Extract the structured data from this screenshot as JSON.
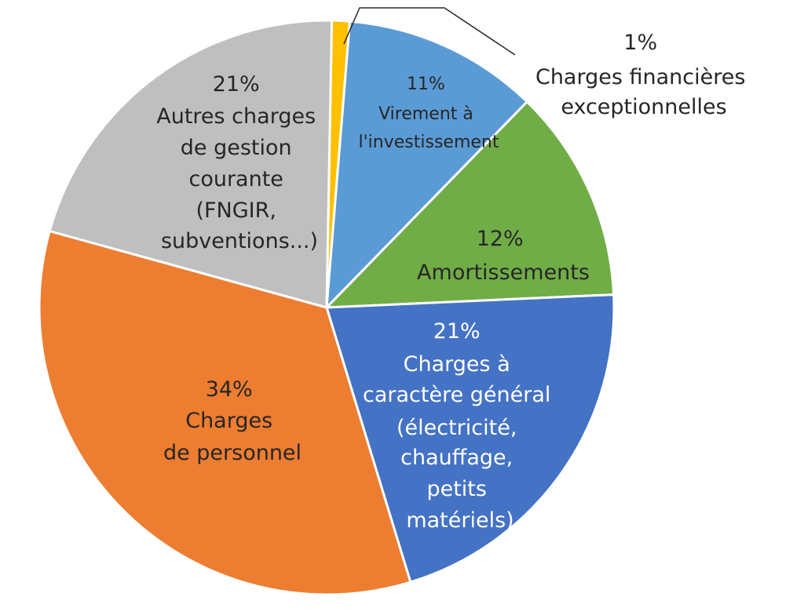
{
  "chart_data": {
    "type": "pie",
    "slices": [
      {
        "label": "Charges financières exceptionnelles",
        "value": 1,
        "color": "#FFC000",
        "label_lines": [
          "1%",
          "Charges financières",
          "exceptionnelles"
        ]
      },
      {
        "label": "Virement à l'investissement",
        "value": 11,
        "color": "#5B9BD5",
        "label_lines": [
          "11%",
          "Virement à",
          "l'investissement"
        ]
      },
      {
        "label": "Amortissements",
        "value": 12,
        "color": "#70AD47",
        "label_lines": [
          "12%",
          "Amortissements"
        ]
      },
      {
        "label": "Charges à caractère général (électricité, chauffage, petits matériels)",
        "value": 21,
        "color": "#4472C4",
        "label_lines": [
          "21%",
          "Charges à",
          "caractère général",
          "(électricité,",
          "chauffage,",
          "petits",
          "matériels)"
        ]
      },
      {
        "label": "Charges de personnel",
        "value": 34,
        "color": "#ED7D31",
        "label_lines": [
          "34%",
          "Charges",
          "de personnel"
        ]
      },
      {
        "label": "Autres charges de gestion courante (FNGIR, subventions...)",
        "value": 21,
        "color": "#BFBFBF",
        "label_lines": [
          "21%",
          "Autres charges",
          "de gestion",
          "courante",
          "(FNGIR,",
          "subventions...)"
        ]
      }
    ]
  }
}
